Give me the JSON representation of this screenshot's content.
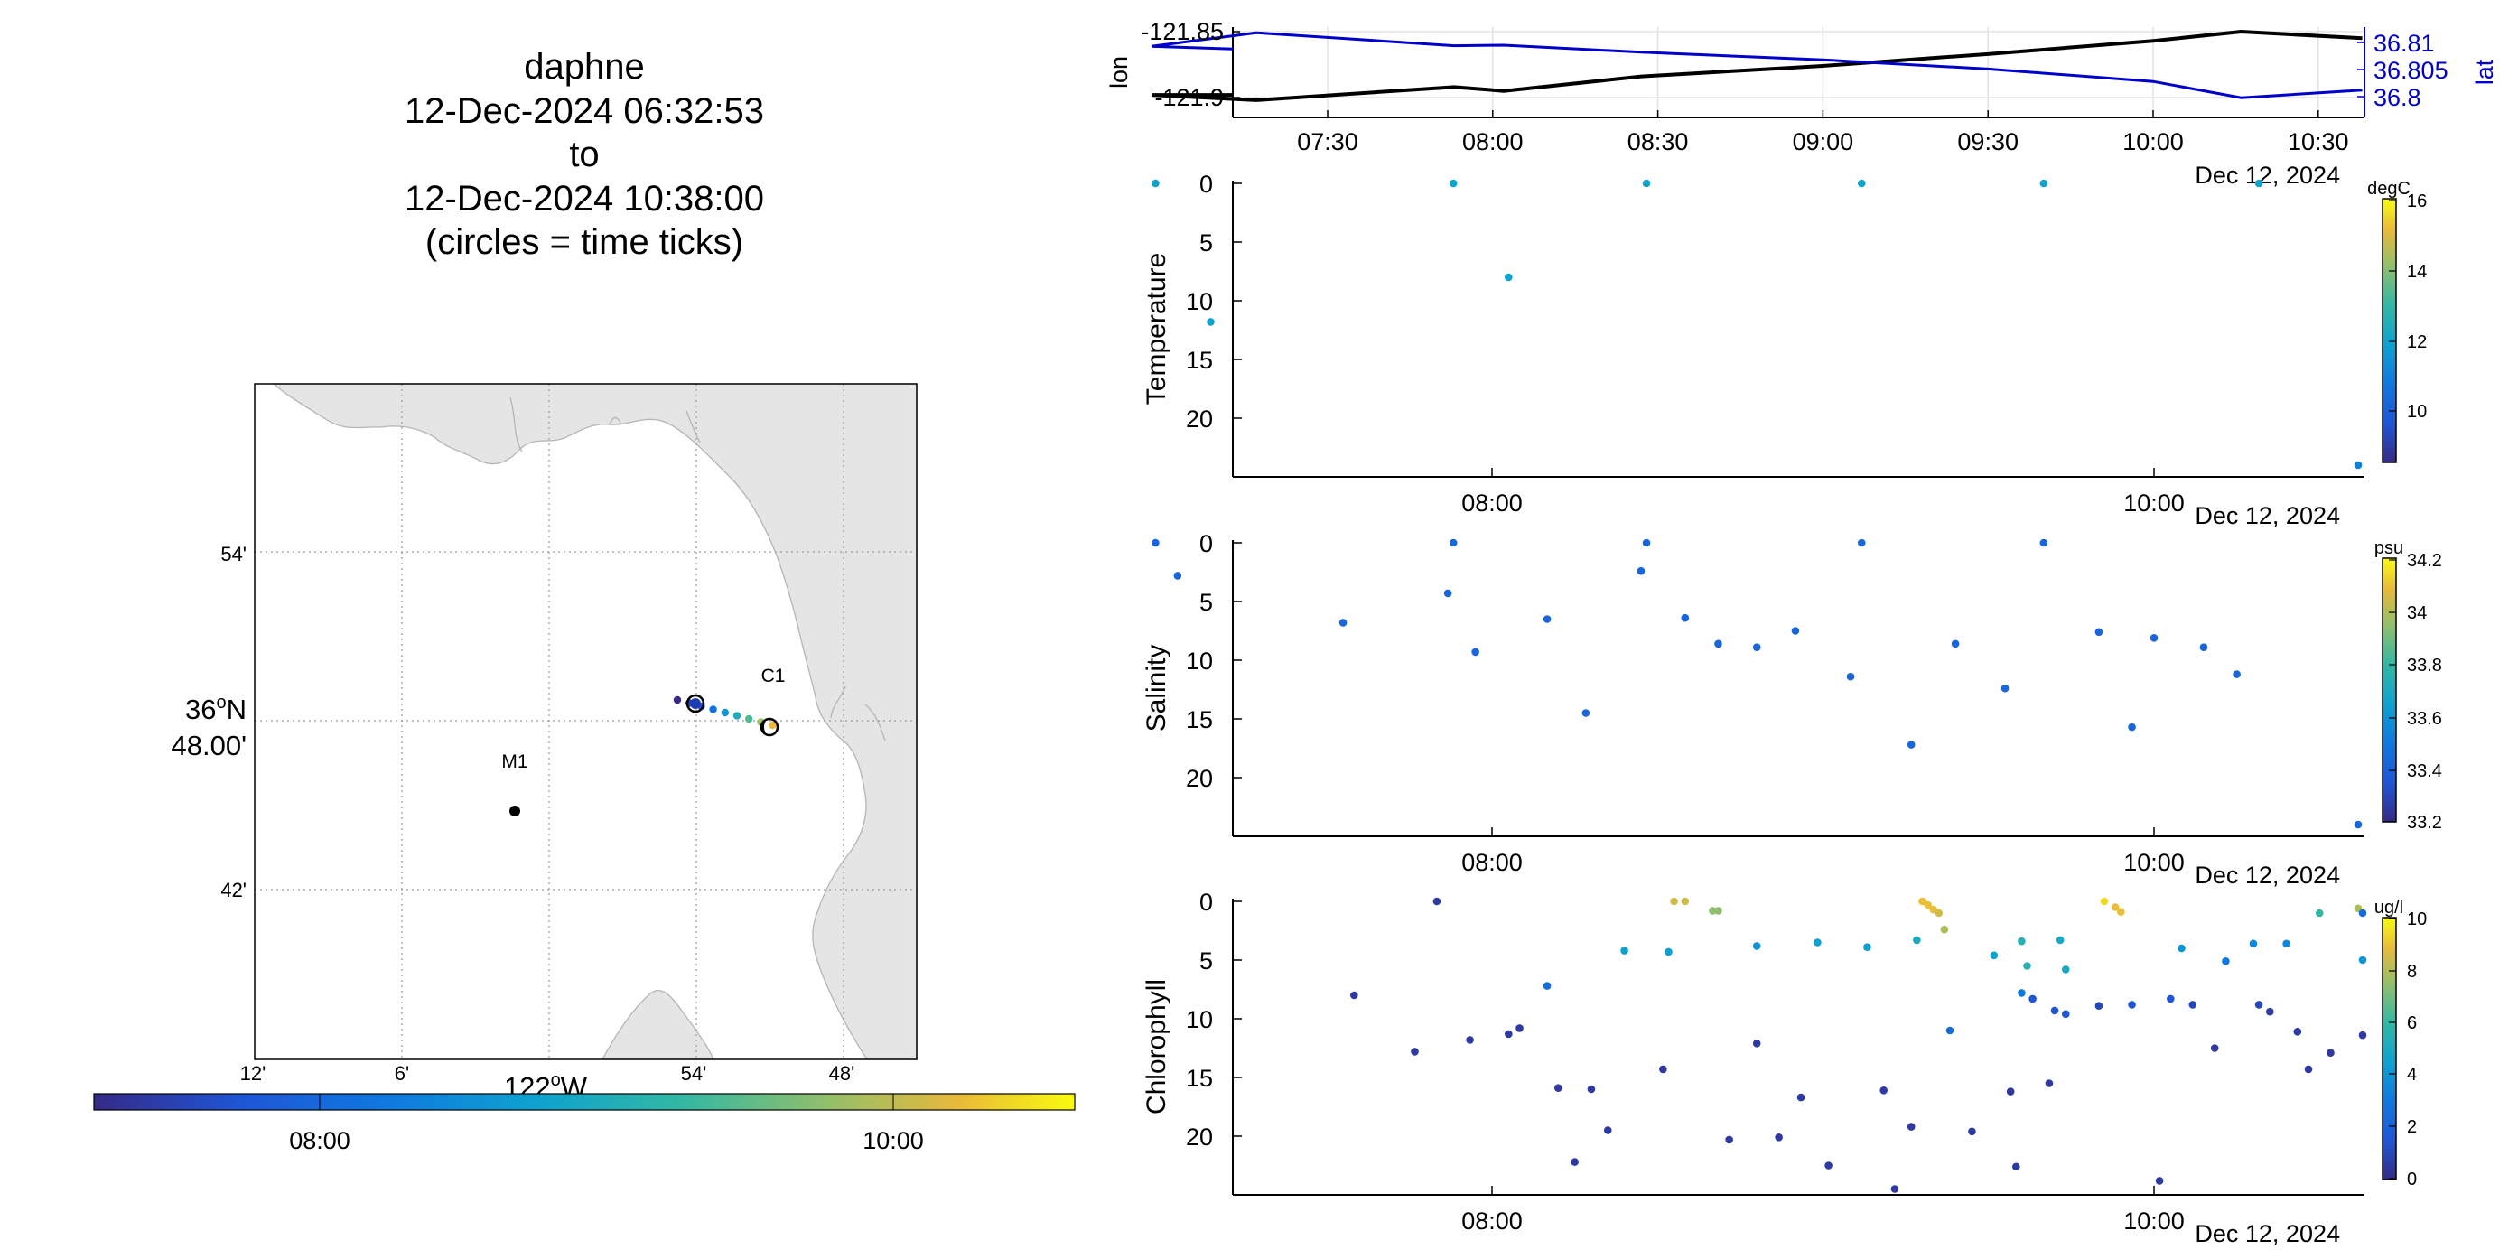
{
  "title": {
    "vehicle": "daphne",
    "start": "12-Dec-2024 06:32:53",
    "to": "to",
    "end": "12-Dec-2024 10:38:00",
    "note": "(circles = time ticks)"
  },
  "map": {
    "lat_ticks": [
      "54'",
      "36°N 48.00'",
      "42'"
    ],
    "lon_ticks": [
      "12'",
      "6'",
      "54'",
      "48'"
    ],
    "lon_label": "122°W",
    "stations": [
      {
        "name": "C1",
        "lon_min": -121.85,
        "lat": 36.797
      },
      {
        "name": "M1",
        "lon_min": -122.022,
        "lat": 36.748
      }
    ],
    "track_points": [
      {
        "lon": -121.897,
        "lat": 36.808,
        "t": 0.0
      },
      {
        "lon": -121.893,
        "lat": 36.807,
        "t": 0.08
      },
      {
        "lon": -121.888,
        "lat": 36.806,
        "t": 0.16
      },
      {
        "lon": -121.882,
        "lat": 36.805,
        "t": 0.28
      },
      {
        "lon": -121.875,
        "lat": 36.803,
        "t": 0.4
      },
      {
        "lon": -121.868,
        "lat": 36.801,
        "t": 0.52
      },
      {
        "lon": -121.862,
        "lat": 36.799,
        "t": 0.64
      },
      {
        "lon": -121.857,
        "lat": 36.797,
        "t": 0.76
      },
      {
        "lon": -121.852,
        "lat": 36.796,
        "t": 0.88
      }
    ],
    "colorbar_ticks": [
      "08:00",
      "10:00"
    ]
  },
  "chart_data": [
    {
      "type": "line",
      "name": "position",
      "ylabel": "lon",
      "ylabel_right": "lat",
      "yticks_left": [
        "-121.85",
        "-121.9"
      ],
      "yticks_right": [
        "36.81",
        "36.805",
        "36.8"
      ],
      "xticks": [
        "07:30",
        "08:00",
        "08:30",
        "09:00",
        "09:30",
        "10:00",
        "10:30"
      ],
      "date_label": "Dec 12, 2024",
      "series": [
        {
          "name": "lon",
          "color": "#000000",
          "x": [
            "06:58",
            "07:17",
            "07:53",
            "08:02",
            "08:27",
            "09:00",
            "09:30",
            "10:00",
            "10:16",
            "10:38"
          ],
          "y": [
            -121.898,
            -121.902,
            -121.892,
            -121.895,
            -121.884,
            -121.876,
            -121.867,
            -121.857,
            -121.85,
            -121.855
          ]
        },
        {
          "name": "lat",
          "color": "#0000cc",
          "x": [
            "06:58",
            "07:17",
            "07:53",
            "08:02",
            "08:27",
            "09:00",
            "09:30",
            "10:00",
            "10:16",
            "10:38"
          ],
          "y": [
            36.8093,
            36.8118,
            36.8094,
            36.8095,
            36.8082,
            36.8068,
            36.8051,
            36.8028,
            36.7998,
            36.8012
          ]
        }
      ]
    },
    {
      "type": "scatter",
      "name": "temperature",
      "ylabel": "Temperature",
      "yticks": [
        "0",
        "5",
        "10",
        "15",
        "20"
      ],
      "xticks": [
        "08:00",
        "10:00"
      ],
      "date_label": "Dec 12, 2024",
      "colorbar": {
        "unit": "degC",
        "ticks": [
          "16",
          "14",
          "12",
          "10"
        ]
      },
      "points": [
        {
          "t": "06:59",
          "depth": 0,
          "c": 12
        },
        {
          "t": "07:09",
          "depth": 11.8,
          "c": 12
        },
        {
          "t": "07:53",
          "depth": 0,
          "c": 12
        },
        {
          "t": "08:03",
          "depth": 8,
          "c": 12
        },
        {
          "t": "08:28",
          "depth": 0,
          "c": 12
        },
        {
          "t": "09:07",
          "depth": 0,
          "c": 12
        },
        {
          "t": "09:40",
          "depth": 0,
          "c": 12
        },
        {
          "t": "10:19",
          "depth": 0,
          "c": 12
        },
        {
          "t": "10:37",
          "depth": 24,
          "c": 11
        }
      ]
    },
    {
      "type": "scatter",
      "name": "salinity",
      "ylabel": "Salinity",
      "yticks": [
        "0",
        "5",
        "10",
        "15",
        "20"
      ],
      "xticks": [
        "08:00",
        "10:00"
      ],
      "date_label": "Dec 12, 2024",
      "colorbar": {
        "unit": "psu",
        "ticks": [
          "34.2",
          "34",
          "33.8",
          "33.6",
          "33.4",
          "33.2"
        ]
      },
      "points": [
        {
          "t": "06:59",
          "depth": 0,
          "c": 33.4
        },
        {
          "t": "07:03",
          "depth": 2.8,
          "c": 33.4
        },
        {
          "t": "07:33",
          "depth": 6.8,
          "c": 33.4
        },
        {
          "t": "07:52",
          "depth": 4.3,
          "c": 33.4
        },
        {
          "t": "07:53",
          "depth": 0,
          "c": 33.4
        },
        {
          "t": "07:57",
          "depth": 9.3,
          "c": 33.4
        },
        {
          "t": "08:10",
          "depth": 6.5,
          "c": 33.4
        },
        {
          "t": "08:17",
          "depth": 14.5,
          "c": 33.4
        },
        {
          "t": "08:27",
          "depth": 2.4,
          "c": 33.4
        },
        {
          "t": "08:28",
          "depth": 0,
          "c": 33.4
        },
        {
          "t": "08:35",
          "depth": 6.4,
          "c": 33.4
        },
        {
          "t": "08:41",
          "depth": 8.6,
          "c": 33.4
        },
        {
          "t": "08:48",
          "depth": 8.9,
          "c": 33.4
        },
        {
          "t": "08:55",
          "depth": 7.5,
          "c": 33.4
        },
        {
          "t": "09:05",
          "depth": 11.4,
          "c": 33.4
        },
        {
          "t": "09:07",
          "depth": 0,
          "c": 33.4
        },
        {
          "t": "09:16",
          "depth": 17.2,
          "c": 33.4
        },
        {
          "t": "09:24",
          "depth": 8.6,
          "c": 33.4
        },
        {
          "t": "09:33",
          "depth": 12.4,
          "c": 33.4
        },
        {
          "t": "09:40",
          "depth": 0,
          "c": 33.4
        },
        {
          "t": "09:50",
          "depth": 7.6,
          "c": 33.4
        },
        {
          "t": "09:56",
          "depth": 15.7,
          "c": 33.4
        },
        {
          "t": "10:00",
          "depth": 8.1,
          "c": 33.4
        },
        {
          "t": "10:09",
          "depth": 8.9,
          "c": 33.4
        },
        {
          "t": "10:15",
          "depth": 11.2,
          "c": 33.4
        },
        {
          "t": "10:37",
          "depth": 24,
          "c": 33.4
        }
      ]
    },
    {
      "type": "scatter",
      "name": "chlorophyll",
      "ylabel": "Chlorophyll",
      "yticks": [
        "0",
        "5",
        "10",
        "15",
        "20"
      ],
      "xticks": [
        "08:00",
        "10:00"
      ],
      "date_label": "Dec 12, 2024",
      "colorbar": {
        "unit": "ug/l",
        "ticks": [
          "10",
          "8",
          "6",
          "4",
          "2",
          "0"
        ]
      },
      "points": [
        {
          "t": "07:35",
          "depth": 8.0,
          "c": 0.5
        },
        {
          "t": "07:46",
          "depth": 12.8,
          "c": 0.5
        },
        {
          "t": "07:50",
          "depth": 0,
          "c": 0.5
        },
        {
          "t": "07:56",
          "depth": 11.8,
          "c": 0.5
        },
        {
          "t": "08:03",
          "depth": 11.3,
          "c": 0.5
        },
        {
          "t": "08:05",
          "depth": 10.8,
          "c": 0.5
        },
        {
          "t": "08:12",
          "depth": 15.9,
          "c": 0.5
        },
        {
          "t": "08:15",
          "depth": 22.2,
          "c": 0.5
        },
        {
          "t": "08:10",
          "depth": 7.2,
          "c": 2.5
        },
        {
          "t": "08:18",
          "depth": 16.0,
          "c": 0.5
        },
        {
          "t": "08:21",
          "depth": 19.5,
          "c": 0.5
        },
        {
          "t": "08:24",
          "depth": 4.2,
          "c": 4.5
        },
        {
          "t": "08:31",
          "depth": 14.3,
          "c": 0.5
        },
        {
          "t": "08:32",
          "depth": 4.3,
          "c": 4.5
        },
        {
          "t": "08:33",
          "depth": 0,
          "c": 8.5
        },
        {
          "t": "08:35",
          "depth": 0,
          "c": 8.5
        },
        {
          "t": "08:40",
          "depth": 0.8,
          "c": 7.5
        },
        {
          "t": "08:41",
          "depth": 0.8,
          "c": 7.5
        },
        {
          "t": "08:43",
          "depth": 20.3,
          "c": 0.5
        },
        {
          "t": "08:48",
          "depth": 3.8,
          "c": 4.0
        },
        {
          "t": "08:48",
          "depth": 12.1,
          "c": 0.5
        },
        {
          "t": "08:52",
          "depth": 20.1,
          "c": 0.5
        },
        {
          "t": "08:56",
          "depth": 16.7,
          "c": 0.5
        },
        {
          "t": "08:59",
          "depth": 3.5,
          "c": 4.5
        },
        {
          "t": "09:01",
          "depth": 22.5,
          "c": 0.5
        },
        {
          "t": "09:08",
          "depth": 3.9,
          "c": 4.5
        },
        {
          "t": "09:11",
          "depth": 16.1,
          "c": 0.5
        },
        {
          "t": "09:13",
          "depth": 24.5,
          "c": 0.5
        },
        {
          "t": "09:16",
          "depth": 19.2,
          "c": 0.5
        },
        {
          "t": "09:17",
          "depth": 3.3,
          "c": 5.0
        },
        {
          "t": "09:18",
          "depth": 0,
          "c": 9.0
        },
        {
          "t": "09:19",
          "depth": 0.3,
          "c": 9.0
        },
        {
          "t": "09:20",
          "depth": 0.7,
          "c": 9.0
        },
        {
          "t": "09:21",
          "depth": 1.0,
          "c": 8.5
        },
        {
          "t": "09:22",
          "depth": 2.4,
          "c": 8.0
        },
        {
          "t": "09:23",
          "depth": 11.0,
          "c": 2.5
        },
        {
          "t": "09:27",
          "depth": 19.6,
          "c": 0.5
        },
        {
          "t": "09:31",
          "depth": 4.6,
          "c": 4.5
        },
        {
          "t": "09:34",
          "depth": 16.2,
          "c": 0.5
        },
        {
          "t": "09:35",
          "depth": 22.6,
          "c": 0.5
        },
        {
          "t": "09:36",
          "depth": 3.4,
          "c": 5.5
        },
        {
          "t": "09:36",
          "depth": 7.8,
          "c": 3.0
        },
        {
          "t": "09:37",
          "depth": 5.5,
          "c": 5.5
        },
        {
          "t": "09:38",
          "depth": 8.3,
          "c": 1.5
        },
        {
          "t": "09:41",
          "depth": 15.5,
          "c": 0.5
        },
        {
          "t": "09:42",
          "depth": 9.3,
          "c": 1.5
        },
        {
          "t": "09:43",
          "depth": 3.3,
          "c": 5.0
        },
        {
          "t": "09:44",
          "depth": 5.8,
          "c": 5.0
        },
        {
          "t": "09:44",
          "depth": 9.6,
          "c": 1.5
        },
        {
          "t": "09:50",
          "depth": 8.9,
          "c": 1.0
        },
        {
          "t": "09:51",
          "depth": 0.0,
          "c": 9.5
        },
        {
          "t": "09:53",
          "depth": 0.5,
          "c": 9.0
        },
        {
          "t": "09:54",
          "depth": 0.9,
          "c": 9.0
        },
        {
          "t": "09:56",
          "depth": 8.8,
          "c": 1.5
        },
        {
          "t": "10:01",
          "depth": 23.8,
          "c": 0.5
        },
        {
          "t": "10:03",
          "depth": 8.3,
          "c": 1.5
        },
        {
          "t": "10:05",
          "depth": 4.0,
          "c": 4.0
        },
        {
          "t": "10:07",
          "depth": 8.8,
          "c": 1.0
        },
        {
          "t": "10:11",
          "depth": 12.5,
          "c": 0.5
        },
        {
          "t": "10:13",
          "depth": 5.1,
          "c": 3.0
        },
        {
          "t": "10:18",
          "depth": 3.6,
          "c": 3.5
        },
        {
          "t": "10:19",
          "depth": 8.8,
          "c": 1.0
        },
        {
          "t": "10:21",
          "depth": 9.4,
          "c": 0.5
        },
        {
          "t": "10:24",
          "depth": 3.6,
          "c": 3.5
        },
        {
          "t": "10:26",
          "depth": 11.1,
          "c": 0.5
        },
        {
          "t": "10:28",
          "depth": 14.3,
          "c": 0.5
        },
        {
          "t": "10:30",
          "depth": 1.0,
          "c": 6.0
        },
        {
          "t": "10:32",
          "depth": 12.9,
          "c": 0.5
        },
        {
          "t": "10:37",
          "depth": 0.6,
          "c": 8.0
        },
        {
          "t": "10:38",
          "depth": 1.0,
          "c": 2.5
        },
        {
          "t": "10:38",
          "depth": 5.0,
          "c": 4.0
        },
        {
          "t": "10:38",
          "depth": 11.4,
          "c": 0.5
        }
      ]
    }
  ]
}
